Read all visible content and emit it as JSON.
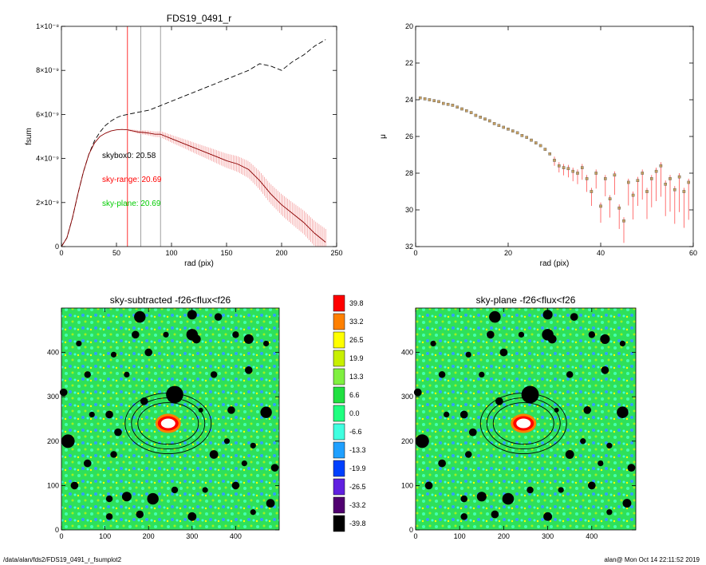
{
  "footer": {
    "path": "/data/alan/fds2/FDS19_0491_r_fsumplot2",
    "stamp": "alan@  Mon Oct 14 22:11:52 2019"
  },
  "chart_data": [
    {
      "type": "line",
      "title": "FDS19_0491_r",
      "xlabel": "rad (pix)",
      "ylabel": "fsum",
      "xlim": [
        0,
        250
      ],
      "ylim": [
        0,
        1e-08
      ],
      "xticks": [
        0,
        50,
        100,
        150,
        200,
        250
      ],
      "yticks": [
        {
          "v": 0,
          "label": "0"
        },
        {
          "v": 2e-09,
          "label": "2×10⁻⁹"
        },
        {
          "v": 4e-09,
          "label": "4×10⁻⁹"
        },
        {
          "v": 6e-09,
          "label": "6×10⁻⁹"
        },
        {
          "v": 8e-09,
          "label": "8×10⁻⁹"
        },
        {
          "v": 1e-08,
          "label": "1×10⁻⁸"
        }
      ],
      "annotations": [
        {
          "text": "skybox0: 20.58",
          "color": "#000000"
        },
        {
          "text": "sky-range: 20.69",
          "color": "#ff0000"
        },
        {
          "text": "sky-plane: 20.69",
          "color": "#00cc00"
        }
      ],
      "vlines": [
        {
          "x": 60,
          "color": "#ff0000"
        },
        {
          "x": 72,
          "color": "#888888"
        },
        {
          "x": 90,
          "color": "#888888"
        }
      ],
      "series": [
        {
          "style": "dashed",
          "color": "#000000",
          "x": [
            0,
            5,
            10,
            15,
            20,
            25,
            30,
            35,
            40,
            45,
            50,
            55,
            60,
            65,
            70,
            75,
            80,
            85,
            90,
            95,
            100,
            110,
            120,
            130,
            140,
            150,
            160,
            170,
            180,
            190,
            200,
            210,
            220,
            230,
            240
          ],
          "y": [
            0,
            4e-10,
            1.3e-09,
            2.4e-09,
            3.4e-09,
            4.2e-09,
            4.8e-09,
            5.2e-09,
            5.5e-09,
            5.7e-09,
            5.85e-09,
            5.95e-09,
            6e-09,
            6.05e-09,
            6.1e-09,
            6.15e-09,
            6.2e-09,
            6.3e-09,
            6.4e-09,
            6.5e-09,
            6.6e-09,
            6.8e-09,
            7e-09,
            7.2e-09,
            7.4e-09,
            7.6e-09,
            7.8e-09,
            8e-09,
            8.3e-09,
            8.2e-09,
            8e-09,
            8.4e-09,
            8.7e-09,
            9.1e-09,
            9.4e-09
          ]
        },
        {
          "style": "solid",
          "color": "#8b0000",
          "x": [
            0,
            5,
            10,
            15,
            20,
            25,
            30,
            35,
            40,
            45,
            50,
            55,
            60,
            65,
            70,
            75,
            80,
            85,
            90,
            95,
            100,
            110,
            120,
            130,
            140,
            150,
            160,
            170,
            180,
            190,
            200,
            210,
            220,
            230,
            240
          ],
          "y": [
            0,
            4e-10,
            1.3e-09,
            2.4e-09,
            3.4e-09,
            4.2e-09,
            4.7e-09,
            5e-09,
            5.15e-09,
            5.25e-09,
            5.3e-09,
            5.32e-09,
            5.3e-09,
            5.25e-09,
            5.2e-09,
            5.18e-09,
            5.15e-09,
            5.1e-09,
            5.1e-09,
            5e-09,
            4.9e-09,
            4.7e-09,
            4.5e-09,
            4.3e-09,
            4.1e-09,
            3.9e-09,
            3.75e-09,
            3.5e-09,
            3e-09,
            2.4e-09,
            1.9e-09,
            1.5e-09,
            1.1e-09,
            6e-10,
            2e-10
          ]
        }
      ]
    },
    {
      "type": "scatter",
      "title": "",
      "xlabel": "rad (pix)",
      "ylabel": "μ",
      "xlim": [
        0,
        60
      ],
      "ylim": [
        32,
        20
      ],
      "y_inverted": true,
      "xticks": [
        0,
        20,
        40,
        60
      ],
      "yticks": [
        20,
        22,
        24,
        26,
        28,
        30,
        32
      ],
      "series": [
        {
          "marker": "square",
          "color": "#666666",
          "x": [
            1,
            2,
            3,
            4,
            5,
            6,
            7,
            8,
            9,
            10,
            11,
            12,
            13,
            14,
            15,
            16,
            17,
            18,
            19,
            20,
            21,
            22,
            23,
            24,
            25,
            26,
            27,
            28,
            29,
            30,
            31,
            32,
            33,
            34,
            35,
            36,
            37,
            38,
            39,
            40,
            41,
            42,
            43,
            44,
            45,
            46,
            47,
            48,
            49,
            50,
            51,
            52,
            53,
            54,
            55,
            56,
            57,
            58,
            59
          ],
          "y": [
            23.9,
            23.95,
            24.0,
            24.05,
            24.1,
            24.2,
            24.25,
            24.3,
            24.4,
            24.5,
            24.6,
            24.7,
            24.85,
            24.95,
            25.05,
            25.15,
            25.3,
            25.4,
            25.5,
            25.6,
            25.7,
            25.8,
            25.95,
            26.05,
            26.2,
            26.35,
            26.5,
            26.7,
            26.95,
            27.3,
            27.6,
            27.7,
            27.75,
            27.9,
            28.0,
            27.7,
            28.3,
            29.0,
            28.0,
            29.8,
            28.3,
            29.4,
            28.1,
            29.9,
            30.6,
            28.5,
            29.2,
            28.4,
            28.0,
            29.0,
            28.3,
            27.9,
            27.6,
            28.6,
            28.3,
            28.9,
            28.2,
            29.0,
            28.5
          ]
        }
      ]
    },
    {
      "type": "heatmap",
      "title": "sky-subtracted -f26<flux<f26",
      "xlim": [
        0,
        500
      ],
      "ylim": [
        0,
        500
      ],
      "xticks": [
        0,
        100,
        200,
        300,
        400
      ],
      "yticks": [
        0,
        100,
        200,
        300,
        400
      ]
    },
    {
      "type": "heatmap",
      "title": "sky-plane -f26<flux<f26",
      "xlim": [
        0,
        500
      ],
      "ylim": [
        0,
        500
      ],
      "xticks": [
        0,
        100,
        200,
        300,
        400
      ],
      "yticks": [
        0,
        100,
        200,
        300,
        400
      ]
    },
    {
      "type": "colorbar",
      "levels": [
        {
          "label": "39.8",
          "color": "#ff0000"
        },
        {
          "label": "33.2",
          "color": "#ff8000"
        },
        {
          "label": "26.5",
          "color": "#ffff00"
        },
        {
          "label": "19.9",
          "color": "#c8f000"
        },
        {
          "label": "13.3",
          "color": "#80f040"
        },
        {
          "label": "6.6",
          "color": "#20e040"
        },
        {
          "label": "0.0",
          "color": "#20ff80"
        },
        {
          "label": "-6.6",
          "color": "#40ffe0"
        },
        {
          "label": "-13.3",
          "color": "#20a0ff"
        },
        {
          "label": "-19.9",
          "color": "#0040ff"
        },
        {
          "label": "-26.5",
          "color": "#6020e0"
        },
        {
          "label": "-33.2",
          "color": "#500070"
        },
        {
          "label": "-39.8",
          "color": "#000000"
        }
      ]
    }
  ]
}
